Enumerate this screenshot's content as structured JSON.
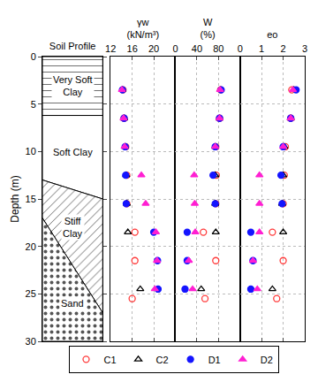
{
  "chart_data": {
    "type": "scatter",
    "ylabel": "Depth (m)",
    "ylim": [
      30,
      0
    ],
    "yticks": [
      0,
      5,
      10,
      15,
      20,
      25,
      30
    ],
    "grid": true,
    "legend": "bottom",
    "profile": {
      "title": "Soil Profile",
      "layers": [
        {
          "name": "Very Soft Clay",
          "top": [
            0,
            0
          ],
          "bottom": [
            6.2,
            6.2
          ]
        },
        {
          "name": "Soft Clay",
          "top": [
            6.2,
            6.2
          ],
          "bottom": [
            13,
            15
          ]
        },
        {
          "name": "Stiff Clay",
          "top": [
            13,
            15
          ],
          "bottom": [
            17,
            27
          ]
        },
        {
          "name": "Sand",
          "top": [
            17,
            27
          ],
          "bottom": [
            30,
            30
          ]
        }
      ]
    },
    "panels": [
      {
        "field": "gamma_w",
        "title": [
          "γw",
          "(kN/m³)"
        ],
        "xlim": [
          12,
          24
        ],
        "xticks": [
          12,
          16,
          20
        ]
      },
      {
        "field": "w",
        "title": [
          "W",
          "(%)"
        ],
        "xlim": [
          0,
          120
        ],
        "xticks": [
          0,
          40,
          80
        ]
      },
      {
        "field": "e0",
        "title": [
          "eo"
        ],
        "xlim": [
          0,
          3
        ],
        "xticks": [
          0,
          1,
          2,
          3
        ]
      }
    ],
    "series": [
      {
        "name": "C1",
        "color": "#ff3b3b",
        "marker": "circle-open",
        "depth": [
          3.5,
          6.5,
          9.5,
          12.5,
          15.5,
          18.5,
          21.5,
          25.5
        ],
        "gamma_w": [
          14.3,
          14.5,
          14.8,
          15.0,
          15.0,
          16.5,
          16.5,
          16.0
        ],
        "w": [
          84,
          82,
          75,
          76,
          75,
          52,
          75,
          55
        ],
        "e0": [
          2.4,
          2.35,
          2.1,
          2.05,
          2.0,
          1.5,
          2.0,
          1.7
        ]
      },
      {
        "name": "C2",
        "color": "#000000",
        "marker": "triangle-up-open",
        "depth": [
          3.5,
          6.5,
          9.5,
          12.5,
          15.5,
          18.5,
          24.5
        ],
        "gamma_w": [
          14.2,
          14.5,
          14.7,
          14.9,
          15.0,
          15.2,
          17.5
        ],
        "w": [
          84,
          82,
          74,
          74,
          74,
          75,
          48
        ],
        "e0": [
          2.5,
          2.35,
          2.05,
          2.0,
          1.95,
          2.0,
          1.5
        ]
      },
      {
        "name": "D1",
        "color": "#1414ff",
        "marker": "circle",
        "depth": [
          3.5,
          6.5,
          9.5,
          12.5,
          15.5,
          18.5,
          21.5,
          24.5
        ],
        "gamma_w": [
          14.2,
          14.5,
          14.7,
          14.8,
          14.9,
          20.0,
          20.7,
          20.8
        ],
        "w": [
          85,
          82,
          74,
          70,
          74,
          22,
          22,
          18
        ],
        "e0": [
          2.6,
          2.35,
          2.0,
          1.9,
          1.95,
          0.5,
          0.6,
          0.5
        ]
      },
      {
        "name": "D2",
        "color": "#ff1fd2",
        "marker": "triangle-up",
        "depth": [
          3.5,
          6.5,
          9.5,
          12.5,
          15.5,
          18.5,
          21.5,
          24.5
        ],
        "gamma_w": [
          14.1,
          14.4,
          14.6,
          17.7,
          18.5,
          20.4,
          20.6,
          20.2
        ],
        "w": [
          83,
          82,
          74,
          35,
          36,
          37,
          25,
          32
        ],
        "e0": [
          2.45,
          2.35,
          2.0,
          0.9,
          0.9,
          0.9,
          0.6,
          0.8
        ]
      }
    ]
  }
}
